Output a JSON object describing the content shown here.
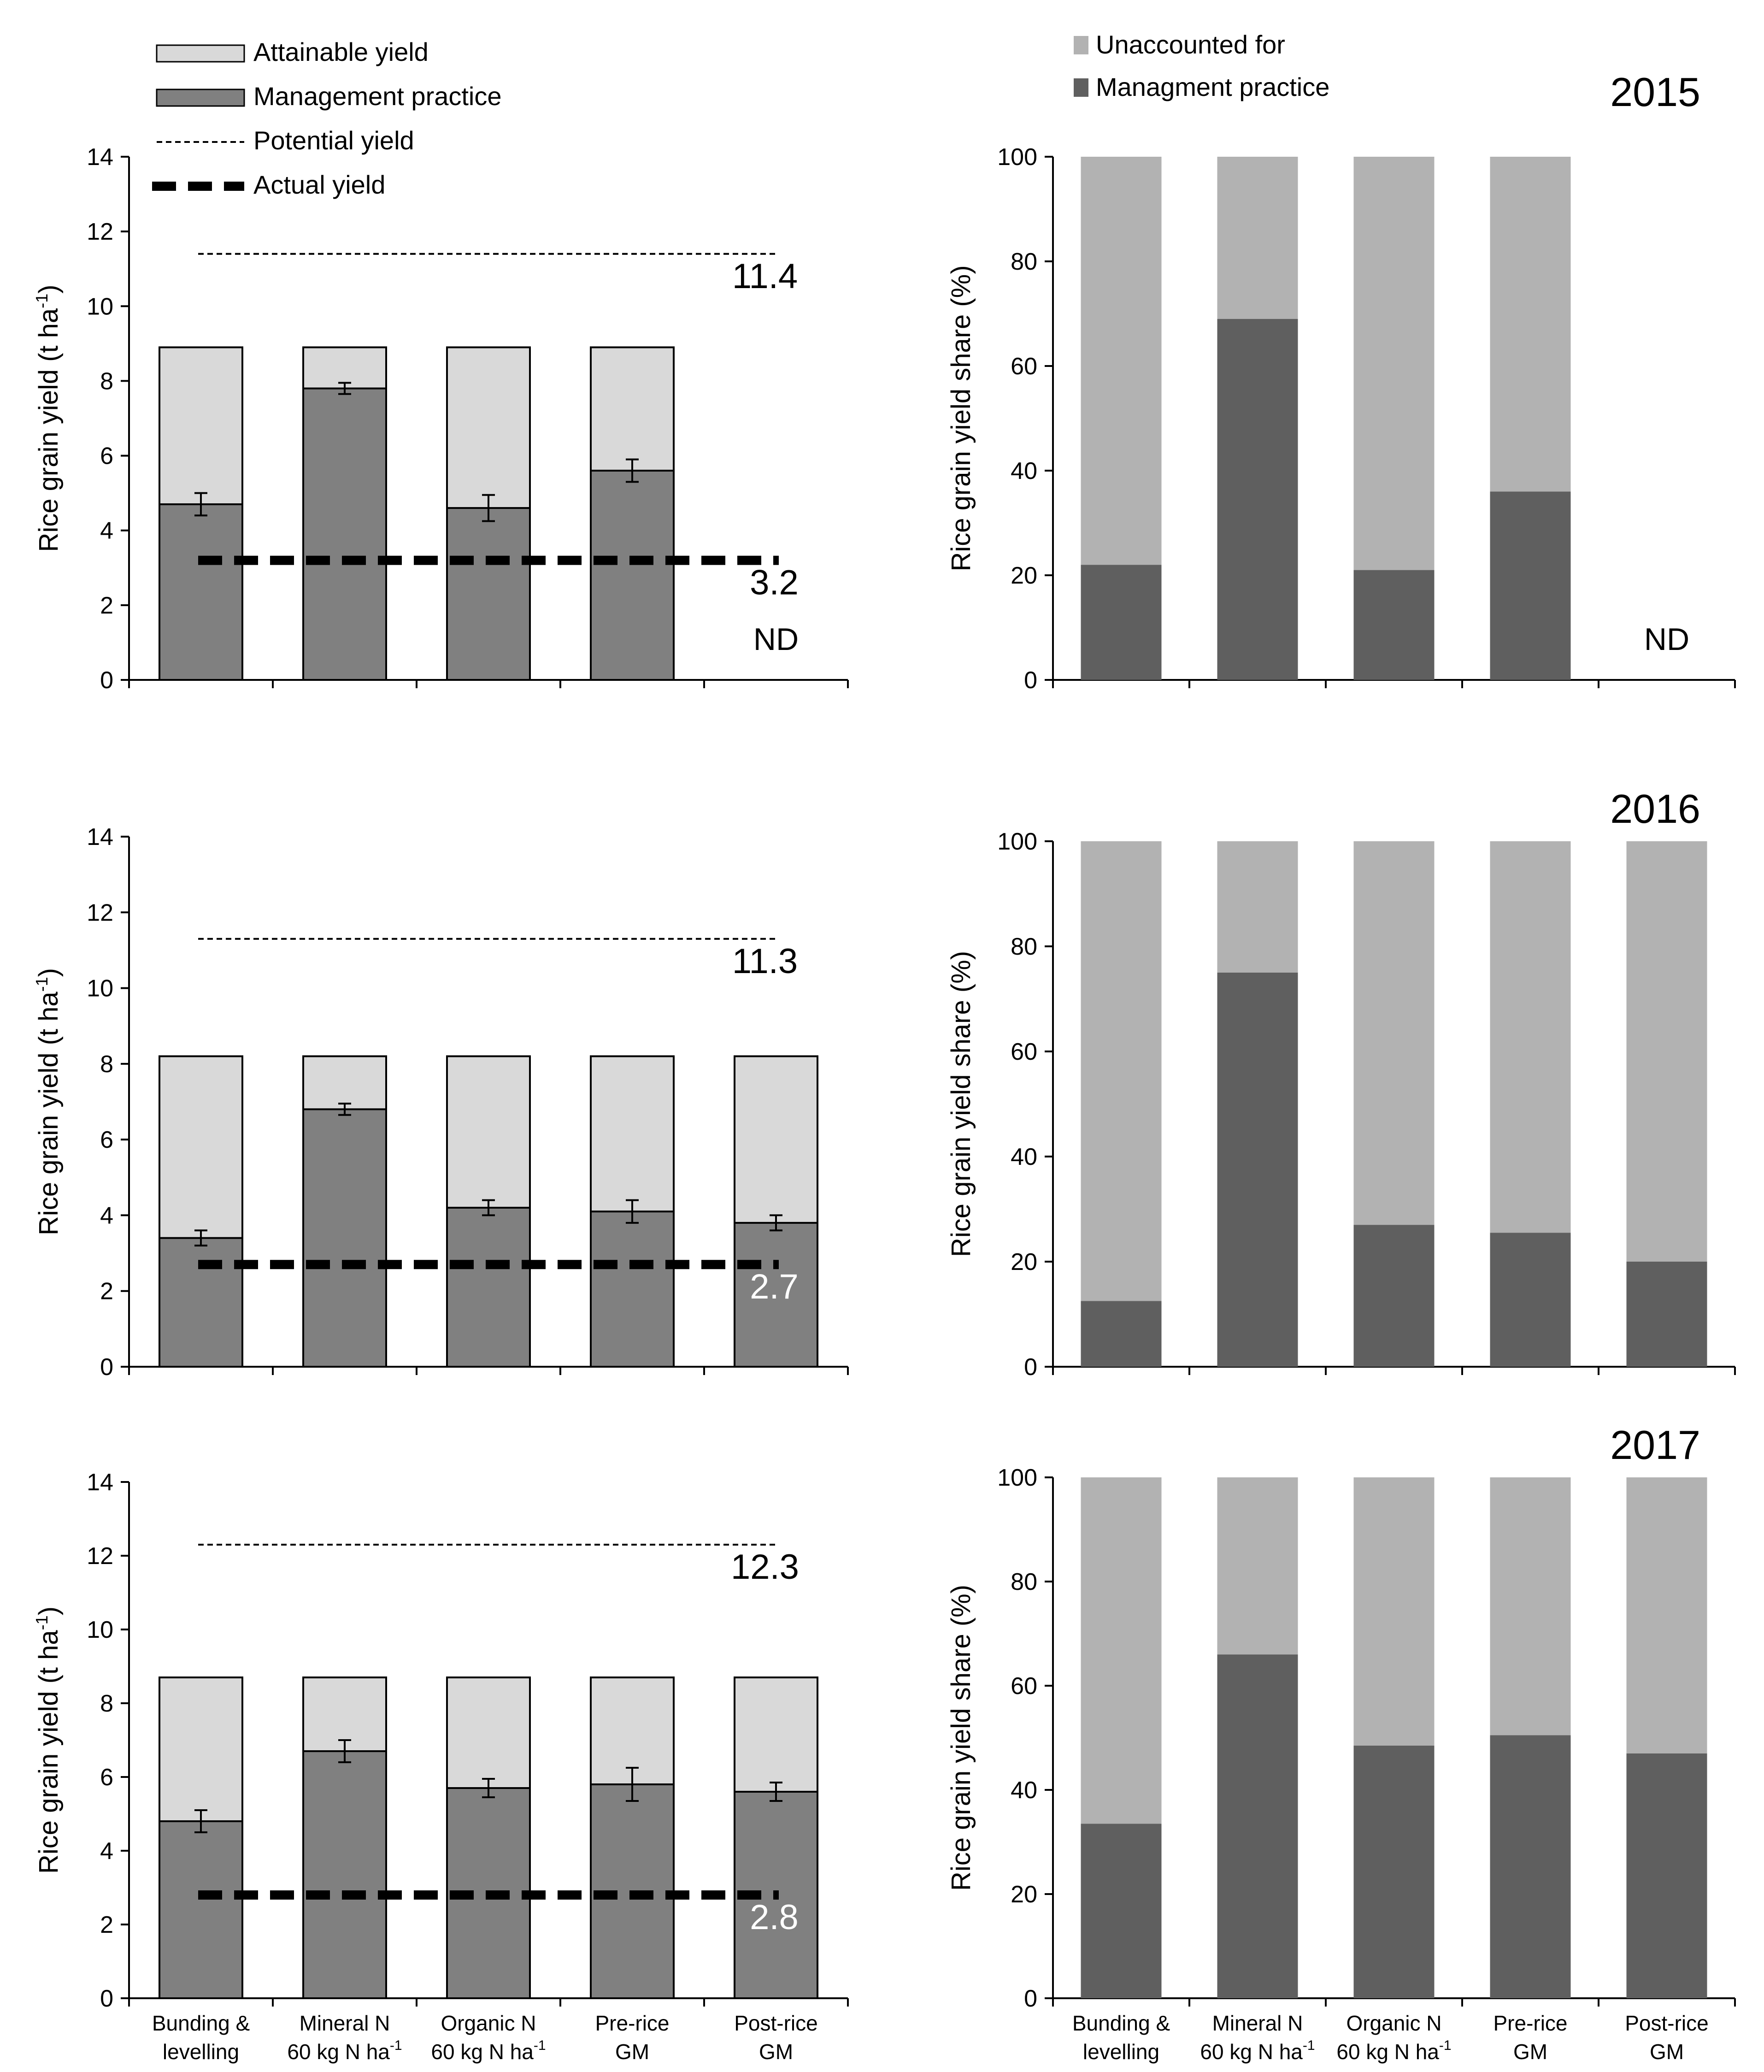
{
  "legend_left": {
    "attainable": "Attainable yield",
    "management": "Management practice",
    "potential": "Potential yield",
    "actual": "Actual yield"
  },
  "legend_right": {
    "unaccounted": "Unaccounted for",
    "management": "Managment practice"
  },
  "colors": {
    "attainable": "#d9d9d9",
    "management_left": "#808080",
    "unaccounted": "#b2b2b2",
    "management_right": "#5f5f5f"
  },
  "categories": [
    [
      "Bunding &",
      "levelling"
    ],
    [
      "Mineral N",
      "60 kg N ha"
    ],
    [
      "Organic N",
      "60 kg N ha"
    ],
    [
      "Pre-rice",
      "GM"
    ],
    [
      "Post-rice",
      "GM"
    ]
  ],
  "nd_text": "ND",
  "chart_data": [
    {
      "type": "bar",
      "year": "2015",
      "title": "",
      "ylabel": "Rice grain yield (t ha-1)",
      "ylim": [
        0,
        14
      ],
      "yticks": [
        "0",
        "2",
        "4",
        "6",
        "8",
        "10",
        "12",
        "14"
      ],
      "series": [
        {
          "name": "Management practice",
          "values": [
            4.7,
            7.8,
            4.6,
            5.6,
            null
          ],
          "errors": [
            0.3,
            0.15,
            0.35,
            0.3,
            null
          ]
        },
        {
          "name": "Attainable yield",
          "values": [
            8.9,
            8.9,
            8.9,
            8.9,
            null
          ]
        }
      ],
      "potential_yield": 11.4,
      "potential_label": "11.4",
      "actual_yield": 3.2,
      "actual_label": "3.2",
      "missing_category_label": "ND"
    },
    {
      "type": "bar",
      "year": "2015",
      "ylabel": "Rice grain yield share (%)",
      "ylim": [
        0,
        100
      ],
      "yticks": [
        "0",
        "20",
        "40",
        "60",
        "80",
        "100"
      ],
      "series": [
        {
          "name": "Managment practice",
          "values": [
            22,
            69,
            21,
            36,
            null
          ]
        },
        {
          "name": "Unaccounted for",
          "values": [
            78,
            31,
            79,
            64,
            null
          ]
        }
      ],
      "missing_category_label": "ND"
    },
    {
      "type": "bar",
      "year": "2016",
      "ylabel": "Rice grain yield (t ha-1)",
      "ylim": [
        0,
        14
      ],
      "yticks": [
        "0",
        "2",
        "4",
        "6",
        "8",
        "10",
        "12",
        "14"
      ],
      "series": [
        {
          "name": "Management practice",
          "values": [
            3.4,
            6.8,
            4.2,
            4.1,
            3.8
          ],
          "errors": [
            0.2,
            0.15,
            0.2,
            0.3,
            0.2
          ]
        },
        {
          "name": "Attainable yield",
          "values": [
            8.2,
            8.2,
            8.2,
            8.2,
            8.2
          ]
        }
      ],
      "potential_yield": 11.3,
      "potential_label": "11.3",
      "actual_yield": 2.7,
      "actual_label": "2.7"
    },
    {
      "type": "bar",
      "year": "2016",
      "ylabel": "Rice grain yield share (%)",
      "ylim": [
        0,
        100
      ],
      "yticks": [
        "0",
        "20",
        "40",
        "60",
        "80",
        "100"
      ],
      "series": [
        {
          "name": "Managment practice",
          "values": [
            12.5,
            75,
            27,
            25.5,
            20
          ]
        },
        {
          "name": "Unaccounted for",
          "values": [
            87.5,
            25,
            73,
            74.5,
            80
          ]
        }
      ]
    },
    {
      "type": "bar",
      "year": "2017",
      "ylabel": "Rice grain yield (t ha-1)",
      "ylim": [
        0,
        14
      ],
      "yticks": [
        "0",
        "2",
        "4",
        "6",
        "8",
        "10",
        "12",
        "14"
      ],
      "series": [
        {
          "name": "Management practice",
          "values": [
            4.8,
            6.7,
            5.7,
            5.8,
            5.6
          ],
          "errors": [
            0.3,
            0.3,
            0.25,
            0.45,
            0.25
          ]
        },
        {
          "name": "Attainable yield",
          "values": [
            8.7,
            8.7,
            8.7,
            8.7,
            8.7
          ]
        }
      ],
      "potential_yield": 12.3,
      "potential_label": "12.3",
      "actual_yield": 2.8,
      "actual_label": "2.8"
    },
    {
      "type": "bar",
      "year": "2017",
      "ylabel": "Rice grain yield share (%)",
      "ylim": [
        0,
        100
      ],
      "yticks": [
        "0",
        "20",
        "40",
        "60",
        "80",
        "100"
      ],
      "series": [
        {
          "name": "Managment practice",
          "values": [
            33.5,
            66,
            48.5,
            50.5,
            47
          ]
        },
        {
          "name": "Unaccounted for",
          "values": [
            66.5,
            34,
            51.5,
            49.5,
            53
          ]
        }
      ]
    }
  ]
}
